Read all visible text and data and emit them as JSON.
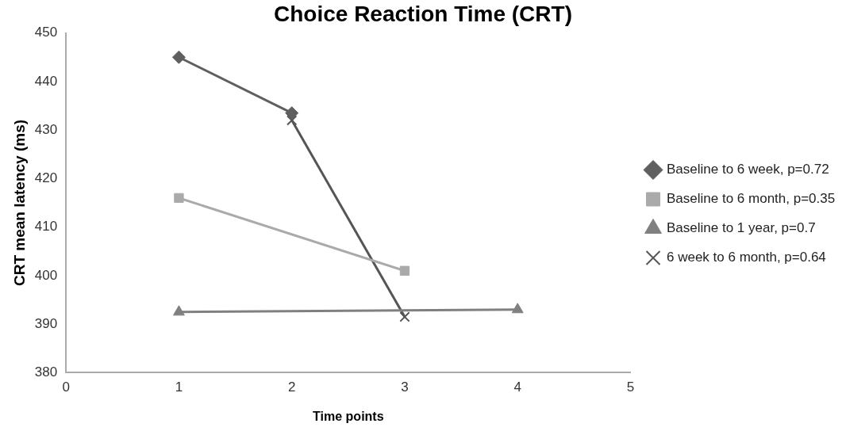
{
  "chart_data": {
    "type": "line",
    "title": "Choice Reaction Time (CRT)",
    "xlabel": "Time points",
    "ylabel": "CRT mean latency (ms)",
    "xlim": [
      0,
      5
    ],
    "xticks": [
      0,
      1,
      2,
      3,
      4,
      5
    ],
    "ylim": [
      380,
      450
    ],
    "yticks": [
      380,
      390,
      400,
      410,
      420,
      430,
      440,
      450
    ],
    "grid": false,
    "legend": "right",
    "series": [
      {
        "name": "Baseline to 6 week, p=0.72",
        "color": "#5f5f5f",
        "marker": "diamond",
        "x": [
          1,
          2
        ],
        "values": [
          445,
          433.5
        ]
      },
      {
        "name": "Baseline to 6 month, p=0.35",
        "color": "#aaaaaa",
        "marker": "square",
        "x": [
          1,
          3
        ],
        "values": [
          416,
          401
        ]
      },
      {
        "name": "Baseline to 1 year, p=0.7",
        "color": "#808080",
        "marker": "triangle",
        "x": [
          1,
          4
        ],
        "values": [
          392.5,
          393
        ]
      },
      {
        "name": "6 week to 6 month, p=0.64",
        "color": "#555555",
        "marker": "cross",
        "x": [
          2,
          3
        ],
        "values": [
          432,
          391.5
        ]
      }
    ]
  }
}
